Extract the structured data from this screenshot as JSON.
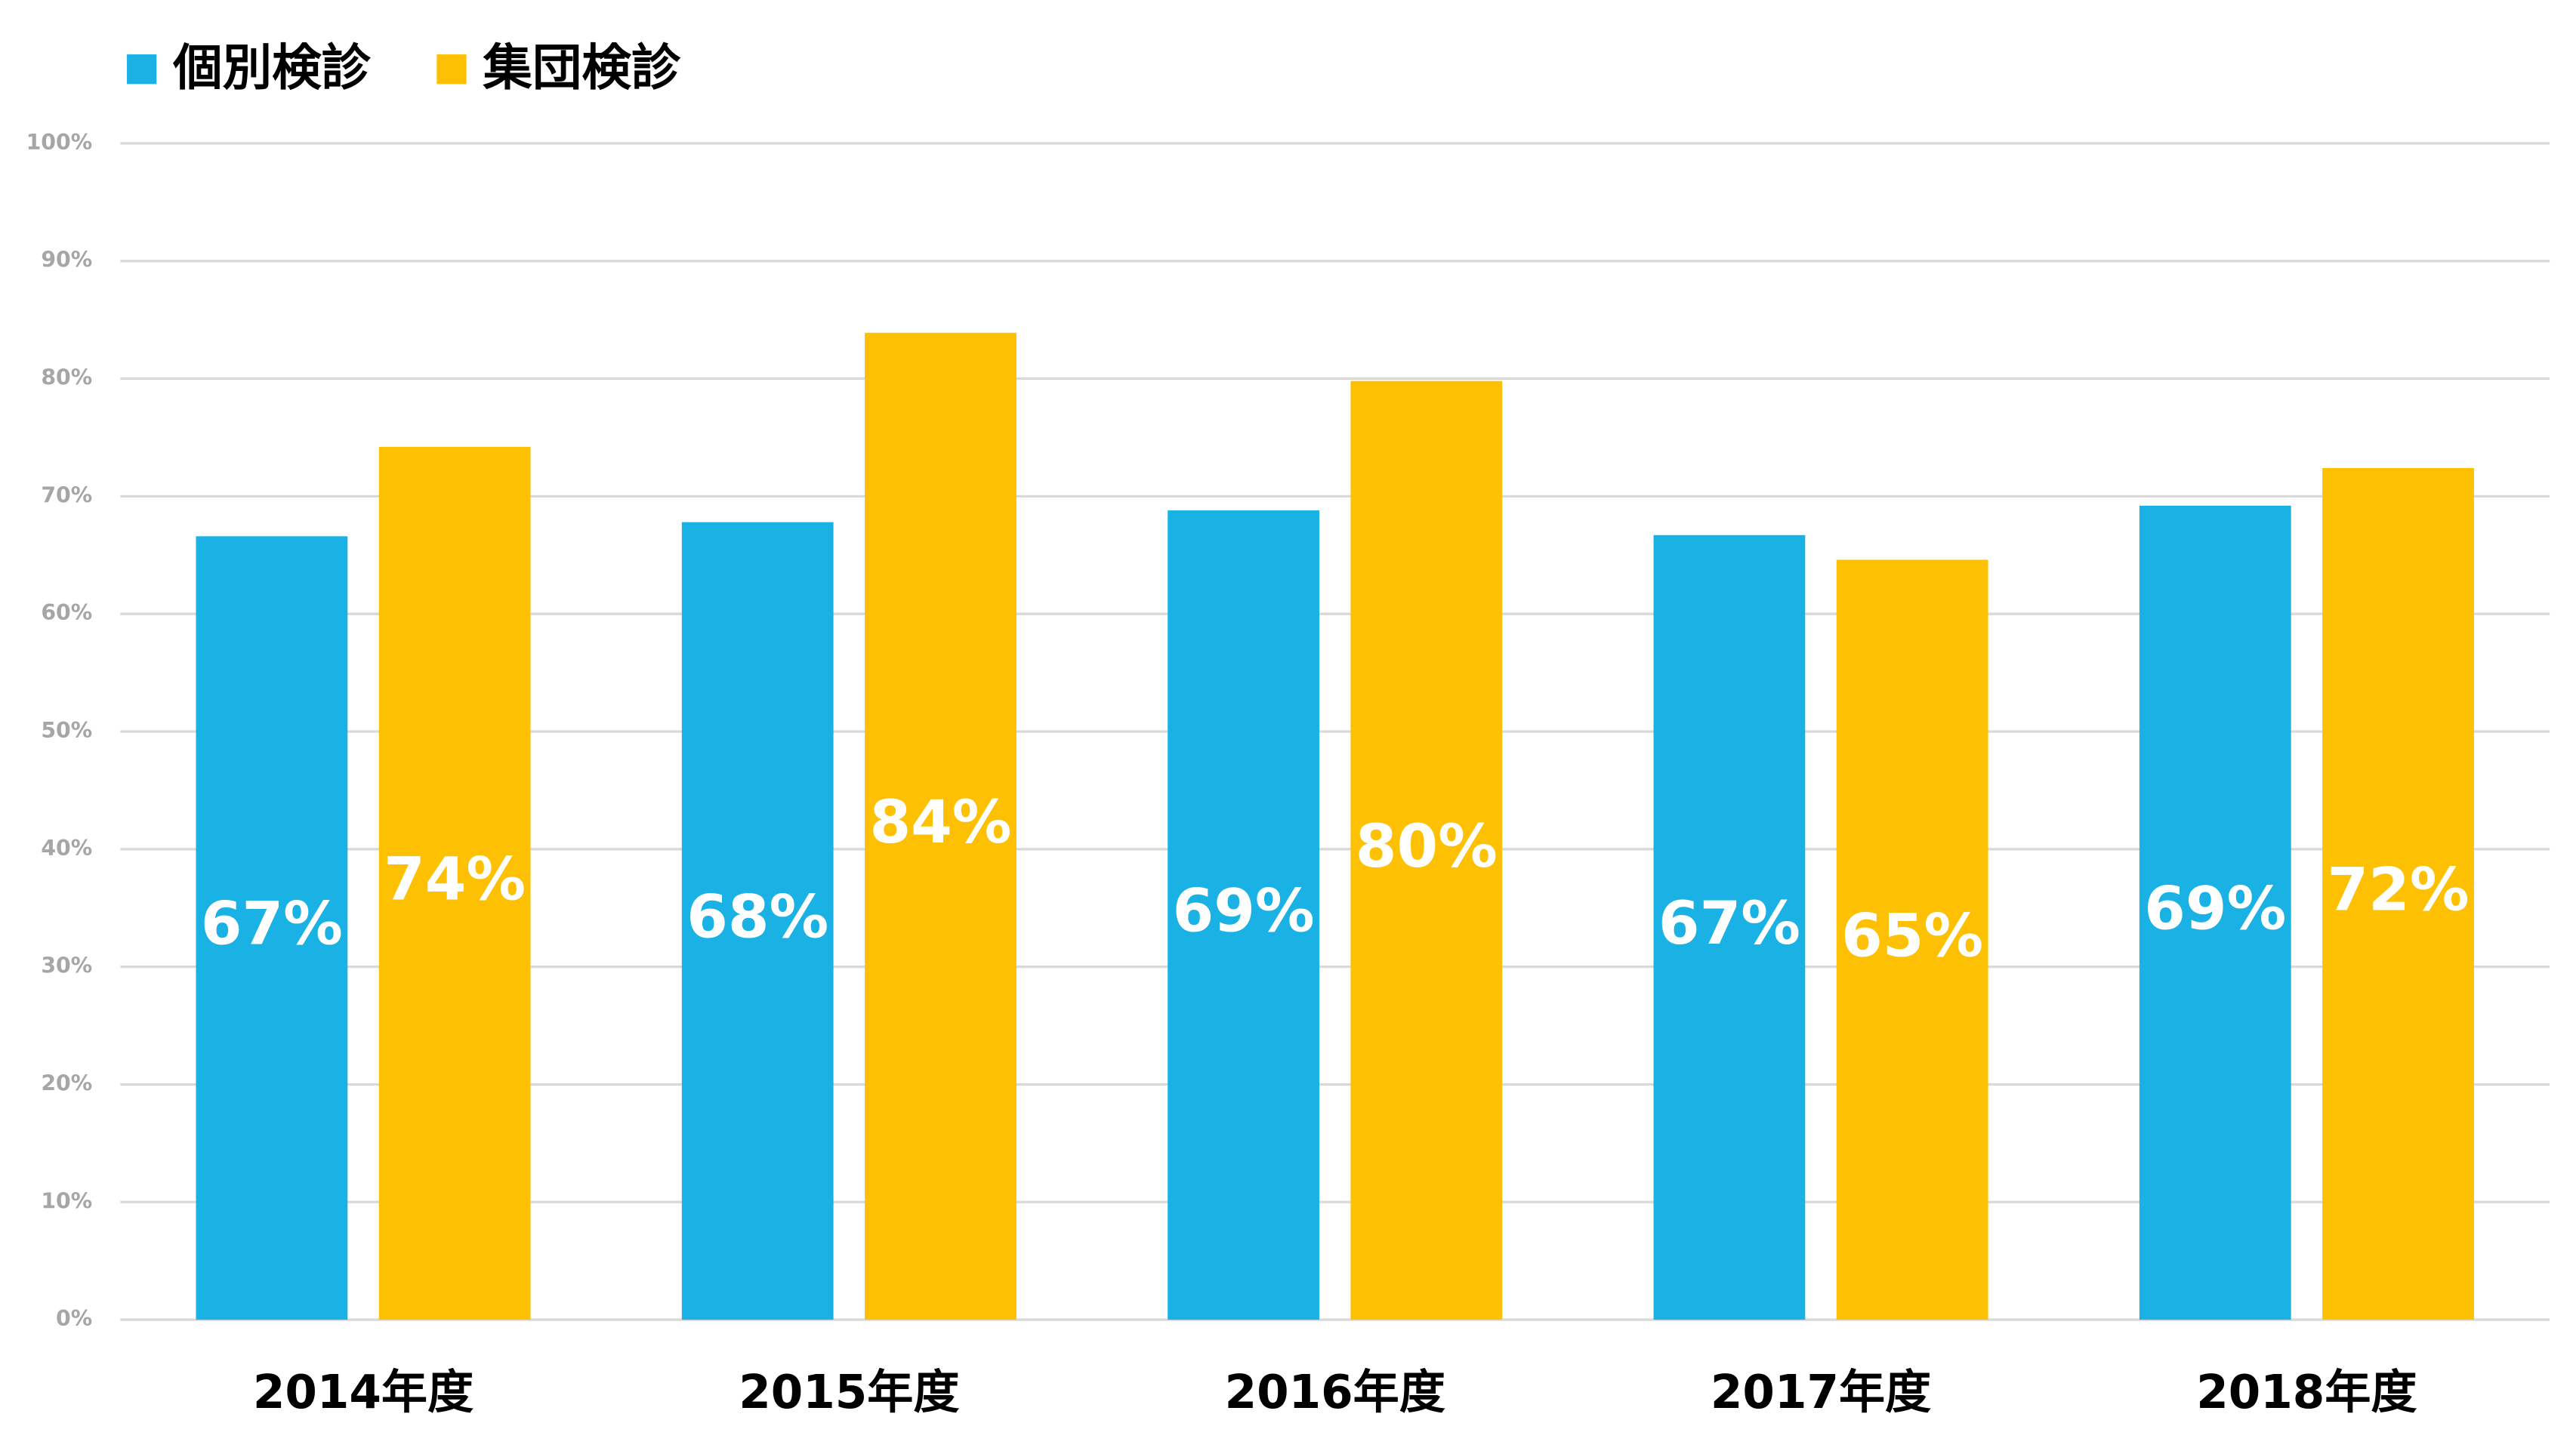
{
  "chart_data": {
    "type": "bar",
    "categories": [
      "2014年度",
      "2015年度",
      "2016年度",
      "2017年度",
      "2018年度"
    ],
    "series": [
      {
        "name": "個別検診",
        "color": "#1ab1e5",
        "values": [
          66.6,
          67.8,
          68.8,
          66.7,
          69.2
        ],
        "value_labels": [
          "67%",
          "68%",
          "69%",
          "67%",
          "69%"
        ]
      },
      {
        "name": "集団検診",
        "color": "#fec002",
        "values": [
          74.2,
          83.9,
          79.8,
          64.6,
          72.4
        ],
        "value_labels": [
          "74%",
          "84%",
          "80%",
          "65%",
          "72%"
        ]
      }
    ],
    "ylim": [
      0,
      100
    ],
    "yticks": [
      {
        "value": 0,
        "label": "0%"
      },
      {
        "value": 10,
        "label": "10%"
      },
      {
        "value": 20,
        "label": "20%"
      },
      {
        "value": 30,
        "label": "30%"
      },
      {
        "value": 40,
        "label": "40%"
      },
      {
        "value": 50,
        "label": "50%"
      },
      {
        "value": 60,
        "label": "60%"
      },
      {
        "value": 70,
        "label": "70%"
      },
      {
        "value": 80,
        "label": "80%"
      },
      {
        "value": 90,
        "label": "90%"
      },
      {
        "value": 100,
        "label": "100%"
      }
    ],
    "grid": true,
    "legend": "top-left"
  }
}
